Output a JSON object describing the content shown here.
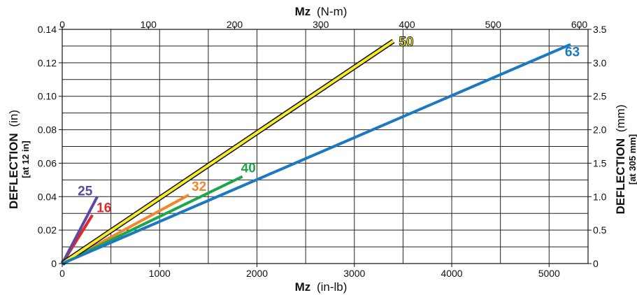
{
  "chart_data": {
    "type": "line",
    "title": "",
    "x_bottom": {
      "label_bold": "Mz",
      "label_unit": "(in-lb)",
      "range": [
        0,
        5400
      ],
      "ticks": [
        0,
        1000,
        2000,
        3000,
        4000,
        5000
      ],
      "minor_step": 500
    },
    "x_top": {
      "label_bold": "Mz",
      "label_unit": "(N-m)",
      "ticks": [
        0,
        100,
        200,
        300,
        400,
        500,
        600
      ],
      "conversion_to_bottom": 8.8507
    },
    "y_left": {
      "label_bold": "DEFLECTION",
      "label_unit": "(in)",
      "sublabel": "[at 12 in]",
      "range": [
        0,
        0.14
      ],
      "ticks": [
        "0",
        "0.02",
        "0.04",
        "0.06",
        "0.08",
        "0.10",
        "0.12",
        "0.14"
      ],
      "minor_step": 0.01
    },
    "y_right": {
      "label_bold": "DEFLECTION",
      "label_unit": "(mm)",
      "sublabel": "[at 305 mm]",
      "range": [
        0,
        3.5
      ],
      "ticks": [
        "0",
        "0.5",
        "1.0",
        "1.5",
        "2.0",
        "2.5",
        "3.0",
        "3.5"
      ]
    },
    "grid": true,
    "series": [
      {
        "name": "16",
        "color": "#e3262b",
        "outline": false,
        "x": [
          0,
          310
        ],
        "y": [
          0,
          0.029
        ]
      },
      {
        "name": "25",
        "color": "#5d4aa0",
        "outline": false,
        "x": [
          0,
          360
        ],
        "y": [
          0,
          0.04
        ]
      },
      {
        "name": "32",
        "color": "#f3862c",
        "outline": false,
        "x": [
          0,
          1300
        ],
        "y": [
          0,
          0.041
        ]
      },
      {
        "name": "40",
        "color": "#1fa64a",
        "outline": false,
        "x": [
          0,
          1850
        ],
        "y": [
          0,
          0.052
        ]
      },
      {
        "name": "50",
        "color": "#f5ec2a",
        "outline": true,
        "x": [
          0,
          3400
        ],
        "y": [
          0,
          0.133
        ]
      },
      {
        "name": "63",
        "color": "#1c78bf",
        "outline": false,
        "x": [
          0,
          5220
        ],
        "y": [
          0,
          0.131
        ]
      }
    ]
  }
}
